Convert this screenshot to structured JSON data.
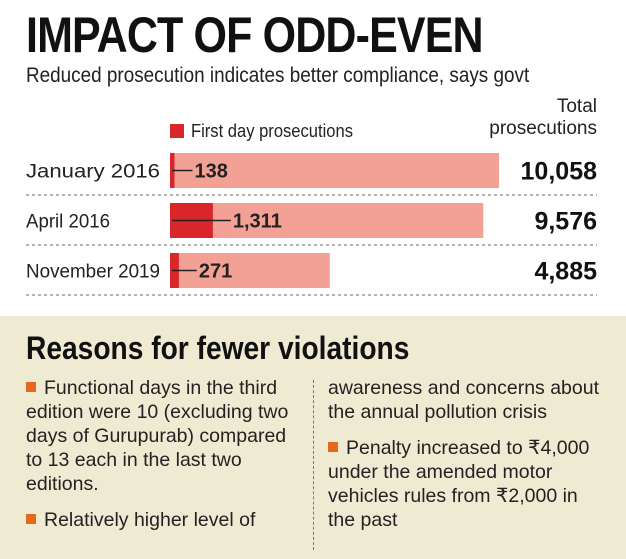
{
  "title": "IMPACT OF ODD-EVEN",
  "subtitle": "Reduced prosecution indicates better compliance, says govt",
  "total_header": [
    "Total",
    "prosecutions"
  ],
  "colors": {
    "first_day": "#d9262b",
    "total": "#f4a195",
    "bullet": "#e36a1d",
    "panel": "#efebd3"
  },
  "chart_data": {
    "type": "bar",
    "orientation": "horizontal",
    "categories": [
      "January 2016",
      "April 2016",
      "November 2019"
    ],
    "series": [
      {
        "name": "First day prosecutions",
        "values": [
          138,
          1311,
          271
        ]
      }
    ],
    "totals": [
      10058,
      9576,
      4885
    ],
    "value_labels": [
      "138",
      "1,311",
      "271"
    ],
    "total_labels": [
      "10,058",
      "9,576",
      "4,885"
    ],
    "xlim": [
      0,
      10058
    ]
  },
  "reasons": {
    "title": "Reasons for fewer violations",
    "left": [
      {
        "bullet": true,
        "text": "Functional days in the third edition were 10 (excluding two days of Gurupurab) compared to 13 each in the last two editions."
      },
      {
        "bullet": true,
        "text": "Relatively higher level of"
      }
    ],
    "right": [
      {
        "bullet": false,
        "text": "awareness and concerns about the annual pollution crisis"
      },
      {
        "bullet": true,
        "text": "Penalty increased to ₹4,000 under the amended motor vehicles rules from ₹2,000 in the past"
      }
    ]
  }
}
